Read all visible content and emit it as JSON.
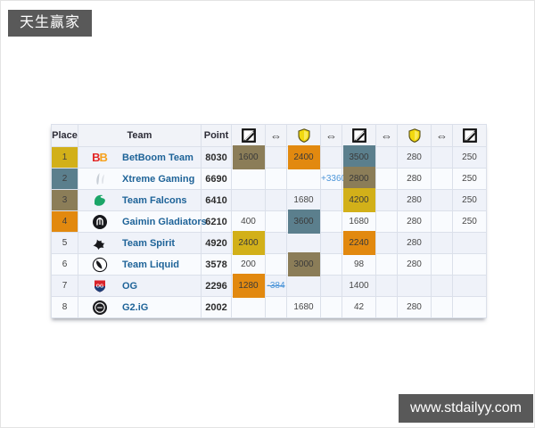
{
  "watermarks": {
    "top_left": "天生赢家",
    "bottom_right": "www.stdailyy.com"
  },
  "glyphs": {
    "swap_arrow": "⇔"
  },
  "colors": {
    "gold": "#d2b019",
    "teal": "#5b7f8d",
    "olive": "#8b7d58",
    "orange": "#e2890f",
    "delta_blue": "#4d96d9",
    "team_link": "#1e6398",
    "badge_bg": "#595959"
  },
  "table": {
    "headers": {
      "place": "Place",
      "team": "Team",
      "point": "Point"
    },
    "icon_columns": [
      "banner-icon",
      "swap-arrow",
      "shield-icon",
      "swap-arrow",
      "banner-icon",
      "swap-arrow",
      "shield-icon",
      "swap-arrow",
      "banner-icon"
    ],
    "rows": [
      {
        "place": "1",
        "place_bg": "gold",
        "logo": "betboom",
        "team": "BetBoom Team",
        "point": "8030",
        "cells": [
          {
            "t": "1600",
            "bg": "olive"
          },
          {
            "t": ""
          },
          {
            "t": "2400",
            "bg": "orange"
          },
          {
            "t": ""
          },
          {
            "t": "3500",
            "bg": "teal"
          },
          {
            "t": ""
          },
          {
            "t": "280"
          },
          {
            "t": ""
          },
          {
            "t": "250"
          }
        ]
      },
      {
        "place": "2",
        "place_bg": "teal",
        "logo": "xtreme",
        "team": "Xtreme Gaming",
        "point": "6690",
        "cells": [
          {
            "t": ""
          },
          {
            "t": ""
          },
          {
            "t": ""
          },
          {
            "t": "+3360",
            "cls": "delta"
          },
          {
            "t": "2800",
            "bg": "olive"
          },
          {
            "t": ""
          },
          {
            "t": "280"
          },
          {
            "t": ""
          },
          {
            "t": "250"
          }
        ]
      },
      {
        "place": "3",
        "place_bg": "olive",
        "logo": "falcons",
        "team": "Team Falcons",
        "point": "6410",
        "cells": [
          {
            "t": ""
          },
          {
            "t": ""
          },
          {
            "t": "1680"
          },
          {
            "t": ""
          },
          {
            "t": "4200",
            "bg": "gold"
          },
          {
            "t": ""
          },
          {
            "t": "280"
          },
          {
            "t": ""
          },
          {
            "t": "250"
          }
        ]
      },
      {
        "place": "4",
        "place_bg": "orange",
        "logo": "gaimin",
        "team": "Gaimin Gladiators",
        "point": "6210",
        "cells": [
          {
            "t": "400"
          },
          {
            "t": ""
          },
          {
            "t": "3600",
            "bg": "teal"
          },
          {
            "t": ""
          },
          {
            "t": "1680"
          },
          {
            "t": ""
          },
          {
            "t": "280"
          },
          {
            "t": ""
          },
          {
            "t": "250"
          }
        ]
      },
      {
        "place": "5",
        "place_bg": "",
        "logo": "spirit",
        "team": "Team Spirit",
        "point": "4920",
        "cells": [
          {
            "t": "2400",
            "bg": "gold"
          },
          {
            "t": ""
          },
          {
            "t": ""
          },
          {
            "t": ""
          },
          {
            "t": "2240",
            "bg": "orange"
          },
          {
            "t": ""
          },
          {
            "t": "280"
          },
          {
            "t": ""
          },
          {
            "t": ""
          }
        ]
      },
      {
        "place": "6",
        "place_bg": "",
        "logo": "liquid",
        "team": "Team Liquid",
        "point": "3578",
        "cells": [
          {
            "t": "200"
          },
          {
            "t": ""
          },
          {
            "t": "3000",
            "bg": "olive"
          },
          {
            "t": ""
          },
          {
            "t": "98"
          },
          {
            "t": ""
          },
          {
            "t": "280"
          },
          {
            "t": ""
          },
          {
            "t": ""
          }
        ]
      },
      {
        "place": "7",
        "place_bg": "",
        "logo": "og",
        "team": "OG",
        "point": "2296",
        "cells": [
          {
            "t": "1280",
            "bg": "orange"
          },
          {
            "t": "-384",
            "cls": "delta struck"
          },
          {
            "t": ""
          },
          {
            "t": ""
          },
          {
            "t": "1400"
          },
          {
            "t": ""
          },
          {
            "t": ""
          },
          {
            "t": ""
          },
          {
            "t": ""
          }
        ]
      },
      {
        "place": "8",
        "place_bg": "",
        "logo": "g2ig",
        "team": "G2.iG",
        "point": "2002",
        "cells": [
          {
            "t": ""
          },
          {
            "t": ""
          },
          {
            "t": "1680"
          },
          {
            "t": ""
          },
          {
            "t": "42"
          },
          {
            "t": ""
          },
          {
            "t": "280"
          },
          {
            "t": ""
          },
          {
            "t": ""
          }
        ]
      }
    ]
  }
}
